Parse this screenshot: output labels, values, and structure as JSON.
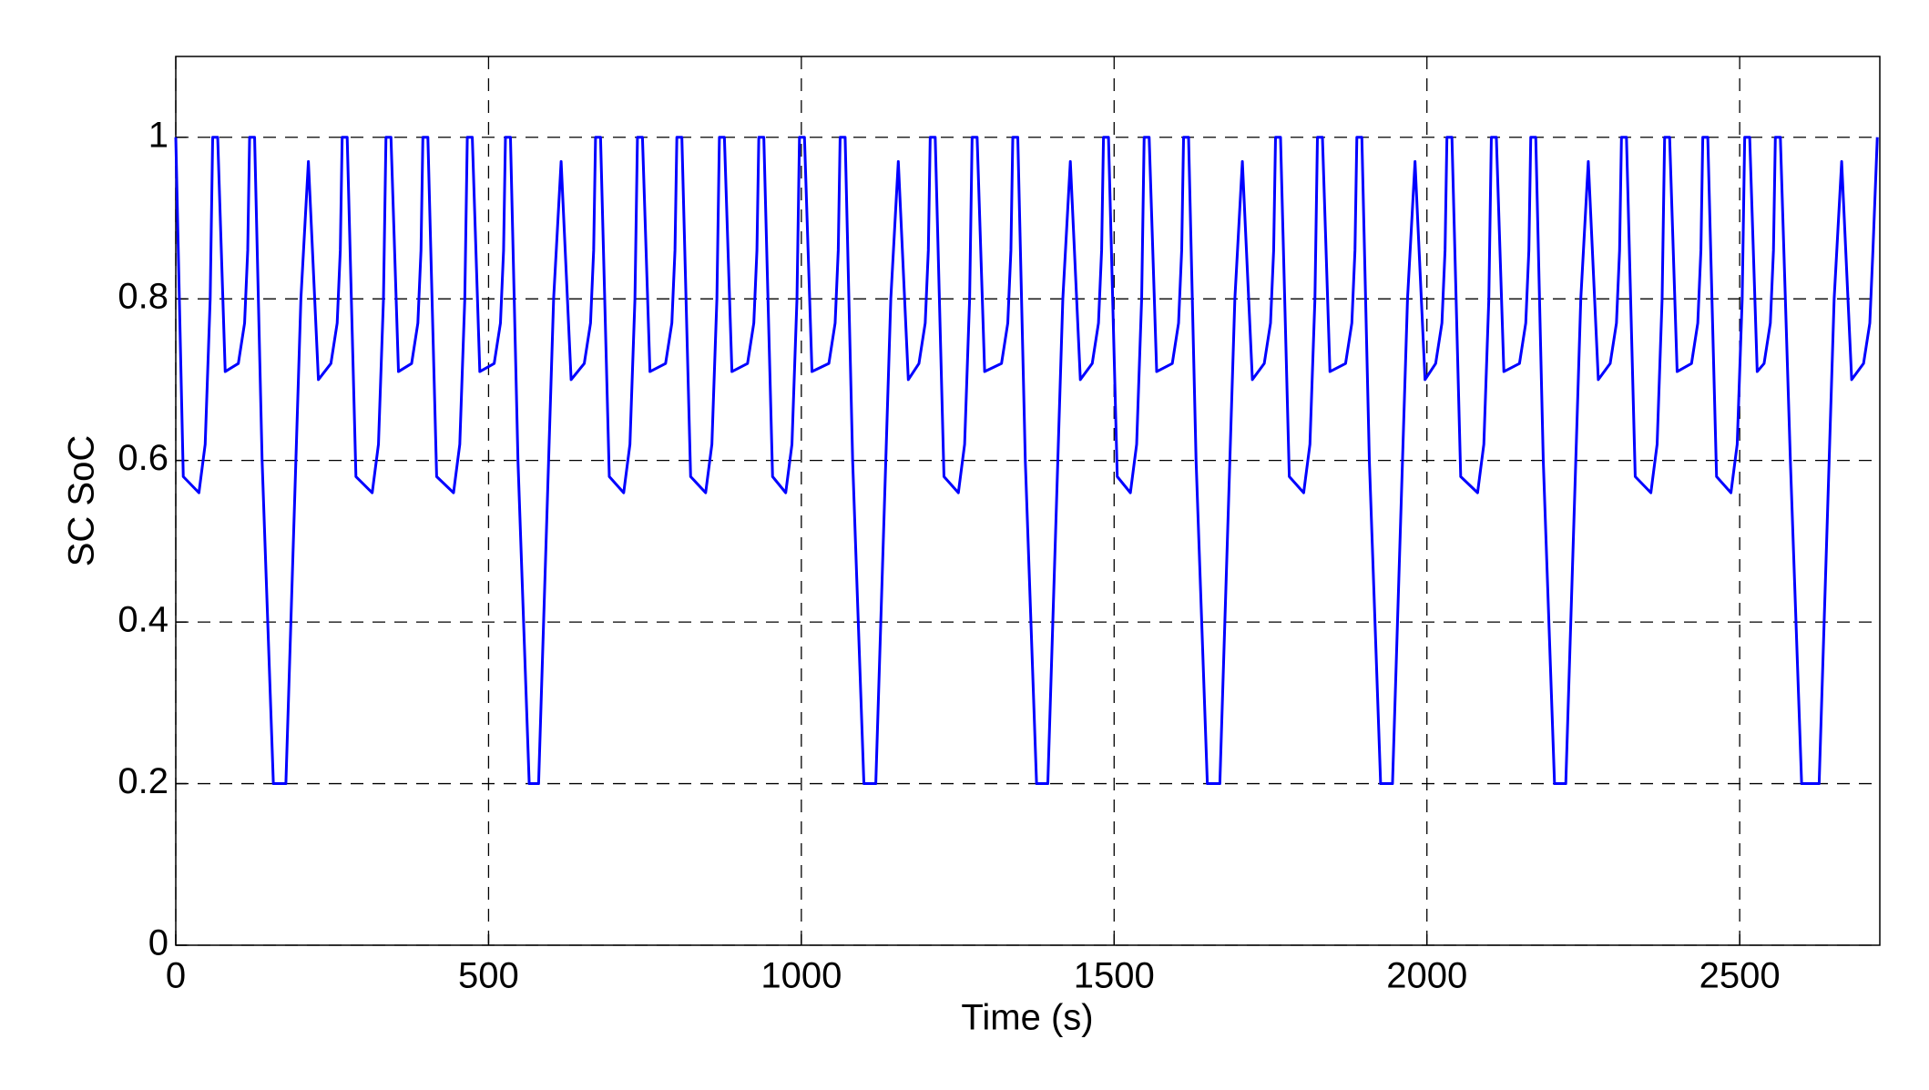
{
  "chart_data": {
    "type": "line",
    "xlabel": "Time (s)",
    "ylabel": "SC SoC",
    "color": "#0000ff",
    "grid": true,
    "xlim": [
      0,
      2724
    ],
    "ylim": [
      0,
      1.1
    ],
    "xticks": [
      0,
      500,
      1000,
      1500,
      2000,
      2500
    ],
    "yticks": [
      0,
      0.2,
      0.4,
      0.6,
      0.8,
      1
    ],
    "x": [
      0,
      12,
      37,
      47,
      55,
      59,
      67,
      79,
      100,
      110,
      115,
      118,
      126,
      138,
      156,
      176,
      184,
      200,
      212,
      228,
      248,
      258,
      263,
      266,
      274,
      288,
      314,
      324,
      332,
      336,
      344,
      356,
      377,
      387,
      392,
      395,
      403,
      417,
      444,
      454,
      462,
      466,
      474,
      486,
      509,
      519,
      524,
      527,
      535,
      547,
      565,
      580,
      588,
      604,
      616,
      632,
      653,
      663,
      668,
      671,
      679,
      693,
      716,
      726,
      734,
      738,
      746,
      758,
      783,
      793,
      798,
      801,
      809,
      823,
      847,
      857,
      865,
      869,
      877,
      889,
      914,
      924,
      929,
      932,
      940,
      954,
      975,
      985,
      993,
      997,
      1005,
      1017,
      1044,
      1054,
      1059,
      1062,
      1070,
      1082,
      1100,
      1119,
      1127,
      1143,
      1155,
      1171,
      1188,
      1198,
      1203,
      1206,
      1214,
      1228,
      1251,
      1261,
      1269,
      1273,
      1281,
      1293,
      1320,
      1330,
      1335,
      1338,
      1346,
      1358,
      1376,
      1394,
      1402,
      1418,
      1430,
      1446,
      1465,
      1475,
      1480,
      1483,
      1491,
      1505,
      1526,
      1536,
      1544,
      1548,
      1556,
      1568,
      1593,
      1603,
      1608,
      1611,
      1619,
      1631,
      1649,
      1669,
      1677,
      1693,
      1705,
      1721,
      1740,
      1750,
      1755,
      1758,
      1766,
      1780,
      1803,
      1813,
      1821,
      1825,
      1833,
      1845,
      1870,
      1880,
      1885,
      1888,
      1896,
      1908,
      1926,
      1945,
      1953,
      1969,
      1981,
      1997,
      2014,
      2024,
      2029,
      2032,
      2040,
      2054,
      2081,
      2091,
      2099,
      2103,
      2111,
      2123,
      2148,
      2158,
      2163,
      2166,
      2174,
      2186,
      2204,
      2222,
      2230,
      2246,
      2258,
      2274,
      2293,
      2303,
      2308,
      2311,
      2319,
      2333,
      2358,
      2368,
      2376,
      2380,
      2388,
      2400,
      2423,
      2433,
      2438,
      2441,
      2449,
      2463,
      2486,
      2496,
      2504,
      2508,
      2516,
      2528,
      2539,
      2549,
      2554,
      2557,
      2565,
      2581,
      2599,
      2627,
      2635,
      2651,
      2663,
      2679,
      2698,
      2708,
      2713,
      2720
    ],
    "values": [
      1,
      0.58,
      0.56,
      0.62,
      0.8,
      1,
      1,
      0.71,
      0.72,
      0.77,
      0.86,
      1,
      1,
      0.6,
      0.2,
      0.2,
      0.4,
      0.8,
      0.97,
      0.7,
      0.72,
      0.77,
      0.86,
      1,
      1,
      0.58,
      0.56,
      0.62,
      0.8,
      1,
      1,
      0.71,
      0.72,
      0.77,
      0.86,
      1,
      1,
      0.58,
      0.56,
      0.62,
      0.8,
      1,
      1,
      0.71,
      0.72,
      0.77,
      0.86,
      1,
      1,
      0.6,
      0.2,
      0.2,
      0.4,
      0.8,
      0.97,
      0.7,
      0.72,
      0.77,
      0.86,
      1,
      1,
      0.58,
      0.56,
      0.62,
      0.8,
      1,
      1,
      0.71,
      0.72,
      0.77,
      0.86,
      1,
      1,
      0.58,
      0.56,
      0.62,
      0.8,
      1,
      1,
      0.71,
      0.72,
      0.77,
      0.86,
      1,
      1,
      0.58,
      0.56,
      0.62,
      0.8,
      1,
      1,
      0.71,
      0.72,
      0.77,
      0.86,
      1,
      1,
      0.6,
      0.2,
      0.2,
      0.4,
      0.8,
      0.97,
      0.7,
      0.72,
      0.77,
      0.86,
      1,
      1,
      0.58,
      0.56,
      0.62,
      0.8,
      1,
      1,
      0.71,
      0.72,
      0.77,
      0.86,
      1,
      1,
      0.6,
      0.2,
      0.2,
      0.4,
      0.8,
      0.97,
      0.7,
      0.72,
      0.77,
      0.86,
      1,
      1,
      0.58,
      0.56,
      0.62,
      0.8,
      1,
      1,
      0.71,
      0.72,
      0.77,
      0.86,
      1,
      1,
      0.6,
      0.2,
      0.2,
      0.4,
      0.8,
      0.97,
      0.7,
      0.72,
      0.77,
      0.86,
      1,
      1,
      0.58,
      0.56,
      0.62,
      0.8,
      1,
      1,
      0.71,
      0.72,
      0.77,
      0.86,
      1,
      1,
      0.6,
      0.2,
      0.2,
      0.4,
      0.8,
      0.97,
      0.7,
      0.72,
      0.77,
      0.86,
      1,
      1,
      0.58,
      0.56,
      0.62,
      0.8,
      1,
      1,
      0.71,
      0.72,
      0.77,
      0.86,
      1,
      1,
      0.6,
      0.2,
      0.2,
      0.4,
      0.8,
      0.97,
      0.7,
      0.72,
      0.77,
      0.86,
      1,
      1,
      0.58,
      0.56,
      0.62,
      0.8,
      1,
      1,
      0.71,
      0.72,
      0.77,
      0.86,
      1,
      1,
      0.58,
      0.56,
      0.62,
      0.8,
      1,
      1,
      0.71,
      0.72,
      0.77,
      0.86,
      1,
      1,
      0.6,
      0.2,
      0.2,
      0.4,
      0.8,
      0.97,
      0.7,
      0.72,
      0.77,
      0.86,
      1
    ]
  }
}
